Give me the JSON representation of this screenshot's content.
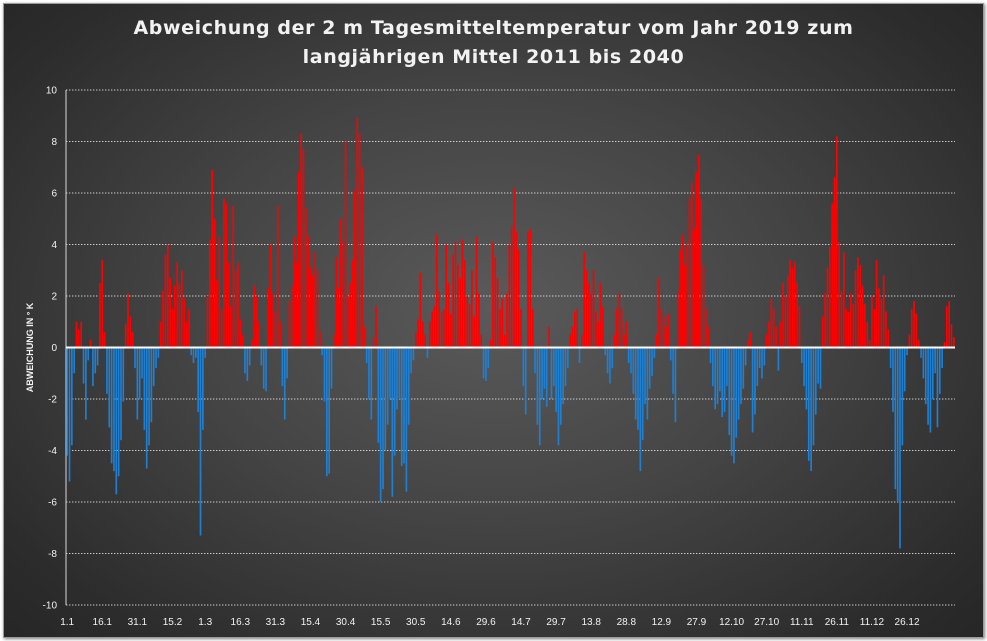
{
  "chart_data": {
    "type": "bar",
    "title_line1": "Abweichung der 2 m Tagesmitteltemperatur  vom Jahr 2019 zum",
    "title_line2": "langjährigen Mittel 2011 bis 2040",
    "ylabel": "ABWEICHUNG IN ° K",
    "ylim": [
      -10,
      10
    ],
    "y_ticks": [
      10,
      8,
      6,
      4,
      2,
      0,
      -2,
      -4,
      -6,
      -8,
      -10
    ],
    "x_tick_labels": [
      "1.1",
      "16.1",
      "31.1",
      "15.2",
      "1.3",
      "16.3",
      "31.3",
      "15.4",
      "30.4",
      "15.5",
      "30.5",
      "14.6",
      "29.6",
      "14.7",
      "29.7",
      "13.8",
      "28.8",
      "12.9",
      "27.9",
      "12.10",
      "27.10",
      "11.11",
      "26.11",
      "11.12",
      "26.12"
    ],
    "x_tick_day_index": [
      0,
      15,
      30,
      45,
      59,
      74,
      89,
      104,
      119,
      134,
      149,
      164,
      179,
      194,
      209,
      224,
      239,
      254,
      269,
      284,
      299,
      314,
      329,
      344,
      359
    ],
    "positive_color": "#ff0000",
    "negative_color": "#1f7fd0",
    "grid": "horizontal dotted",
    "values": [
      -4.2,
      -5.2,
      -3.8,
      -1.0,
      1.0,
      0.7,
      1.0,
      -1.4,
      -2.8,
      -0.5,
      0.3,
      -1.5,
      -1.0,
      -0.7,
      2.5,
      3.4,
      0.6,
      -1.8,
      -3.1,
      -4.5,
      -4.8,
      -5.7,
      -5.0,
      -3.6,
      -2.1,
      0.9,
      2.1,
      1.2,
      0.6,
      -0.8,
      -2.8,
      -2.0,
      -1.2,
      -3.2,
      -4.7,
      -3.8,
      -2.9,
      -1.5,
      -0.8,
      -0.4,
      1.0,
      2.2,
      3.6,
      4.0,
      2.7,
      1.5,
      2.4,
      3.3,
      2.5,
      3.0,
      1.9,
      1.0,
      1.5,
      -0.3,
      -0.6,
      -0.4,
      -2.5,
      -7.3,
      -3.2,
      -0.4,
      2.0,
      4.2,
      6.9,
      5.0,
      2.6,
      4.3,
      1.5,
      5.8,
      5.6,
      3.3,
      1.6,
      5.5,
      3.0,
      3.3,
      1.1,
      0.5,
      -1.0,
      -1.3,
      -0.7,
      0.3,
      2.4,
      2.0,
      1.0,
      -0.7,
      -1.6,
      -1.7,
      2.3,
      4.0,
      2.1,
      1.4,
      5.5,
      1.0,
      -1.5,
      -2.8,
      -1.2,
      1.8,
      2.4,
      4.3,
      3.3,
      6.8,
      8.3,
      7.7,
      5.4,
      4.3,
      3.1,
      2.8,
      3.7,
      3.0,
      0.6,
      -0.3,
      -2.1,
      -5.0,
      -4.9,
      -1.6,
      0.5,
      3.5,
      2.3,
      5.0,
      4.1,
      8.0,
      2.0,
      2.5,
      3.4,
      6.1,
      8.9,
      8.3,
      7.0,
      0.8,
      -0.6,
      -2.0,
      -2.8,
      0.4,
      1.6,
      -3.7,
      -6.0,
      -5.5,
      -4.0,
      -3.0,
      -2.0,
      -5.8,
      -4.2,
      -2.4,
      -2.0,
      -4.6,
      -4.5,
      -5.6,
      -3.0,
      -1.0,
      -0.5,
      0.6,
      1.1,
      2.9,
      1.0,
      0.5,
      -0.4,
      1.0,
      1.4,
      1.6,
      4.4,
      2.2,
      1.4,
      1.5,
      4.0,
      2.5,
      1.3,
      3.6,
      4.1,
      3.2,
      2.7,
      4.2,
      3.4,
      2.0,
      1.7,
      3.0,
      1.2,
      4.3,
      2.1,
      0.5,
      -1.2,
      -1.3,
      -0.8,
      0.3,
      4.1,
      3.5,
      2.7,
      1.5,
      1.9,
      0.5,
      2.1,
      4.0,
      4.7,
      6.2,
      4.5,
      3.8,
      1.5,
      -1.5,
      -2.6,
      4.5,
      4.6,
      1.5,
      -1.0,
      -3.0,
      -3.8,
      -2.0,
      -1.6,
      -2.3,
      0.8,
      -2.0,
      -1.5,
      -2.5,
      -3.8,
      -3.0,
      -2.2,
      -1.5,
      -0.8,
      0.5,
      0.8,
      1.4,
      1.5,
      -0.6,
      0.5,
      3.7,
      3.0,
      2.5,
      2.1,
      3.0,
      1.4,
      1.0,
      2.5,
      1.6,
      -0.3,
      -1.0,
      -1.4,
      -0.8,
      0.5,
      1.5,
      2.1,
      1.5,
      0.5,
      1.0,
      -0.6,
      -1.0,
      -1.8,
      -2.8,
      -3.2,
      -4.8,
      -3.6,
      -2.2,
      -2.8,
      -1.6,
      -1.1,
      -0.4,
      0.5,
      2.7,
      1.5,
      1.2,
      0.8,
      1.3,
      -0.5,
      -1.8,
      -2.9,
      2.2,
      3.8,
      4.4,
      3.2,
      4.0,
      5.8,
      6.4,
      4.6,
      6.8,
      7.5,
      5.8,
      3.2,
      1.5,
      0.8,
      -0.6,
      -1.5,
      -2.4,
      -2.2,
      -1.7,
      -2.7,
      -2.5,
      -1.5,
      -3.4,
      -4.2,
      -4.5,
      -3.5,
      -2.8,
      -2.2,
      -1.6,
      -0.7,
      0.3,
      0.6,
      -3.3,
      -2.6,
      -1.5,
      -0.8,
      -1.2,
      -0.7,
      0.5,
      1.0,
      1.9,
      1.5,
      0.8,
      -0.9,
      1.0,
      2.5,
      2.0,
      2.8,
      3.4,
      3.1,
      3.3,
      2.5,
      1.6,
      -0.6,
      -1.5,
      -2.4,
      -4.4,
      -4.8,
      -3.8,
      -2.6,
      -1.4,
      -1.6,
      1.2,
      2.1,
      3.1,
      3.9,
      5.6,
      6.6,
      8.2,
      4.1,
      2.2,
      3.7,
      1.5,
      1.4,
      2.1,
      1.7,
      3.0,
      3.5,
      3.2,
      2.4,
      1.7,
      1.0,
      0.3,
      2.0,
      1.5,
      3.4,
      2.3,
      1.9,
      2.8,
      1.4,
      0.7,
      -0.8,
      -2.5,
      -5.5,
      -6.0,
      -7.8,
      -3.8,
      -1.7,
      -0.3,
      0.5,
      1.5,
      1.8,
      1.3,
      0.3,
      -0.4,
      -1.2,
      -2.2,
      -3.0,
      -3.3,
      -2.0,
      -1.0,
      -3.1,
      -1.8,
      -0.8,
      0.2,
      1.6,
      1.8,
      0.9,
      0.4
    ]
  }
}
